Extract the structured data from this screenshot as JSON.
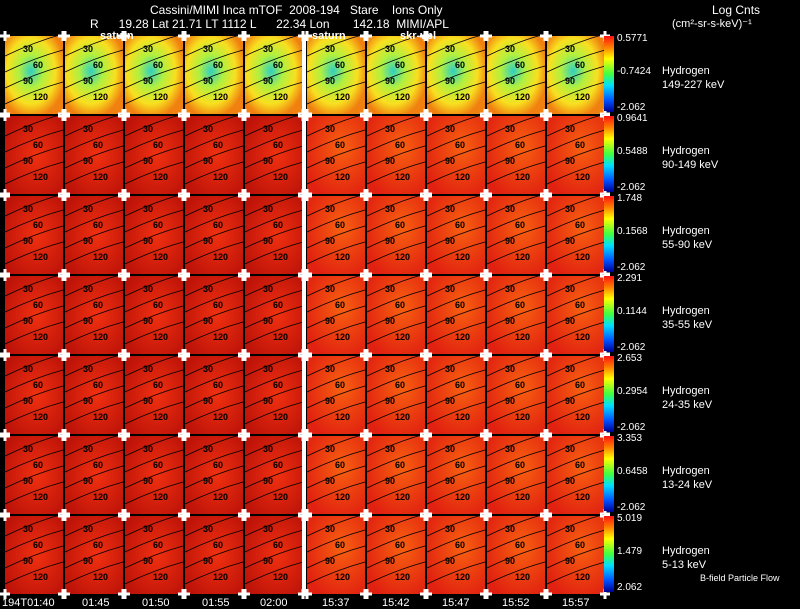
{
  "header": {
    "title": "Cassini/MIMI Inca mTOF  2008-194   Stare    Ions Only",
    "subtitle": "R      19.28 Lat 21.71 LT 1112 L      22.34 Lon       142.18  MIMI/APL",
    "units_title": "Log Cnts",
    "units_sub": "(cm²-sr-s-keV)⁻¹"
  },
  "pane_labels": [
    "saturn",
    "saturn",
    "skr-vpl"
  ],
  "rows": [
    {
      "species": "Hydrogen",
      "range": "149-227 keV",
      "max": "0.5771",
      "mid": "-0.7424",
      "min": "-2.062"
    },
    {
      "species": "Hydrogen",
      "range": "90-149 keV",
      "max": "0.9641",
      "mid": "0.5488",
      "min": "-2.062"
    },
    {
      "species": "Hydrogen",
      "range": "55-90 keV",
      "max": "1.748",
      "mid": "0.1568",
      "min": "-2.062"
    },
    {
      "species": "Hydrogen",
      "range": "35-55 keV",
      "max": "2.291",
      "mid": "0.1144",
      "min": "-2.062"
    },
    {
      "species": "Hydrogen",
      "range": "24-35 keV",
      "max": "2.653",
      "mid": "0.2954",
      "min": "-2.062"
    },
    {
      "species": "Hydrogen",
      "range": "13-24 keV",
      "max": "3.353",
      "mid": "0.6458",
      "min": "-2.062"
    },
    {
      "species": "Hydrogen",
      "range": "5-13 keV",
      "max": "5.019",
      "mid": "1.479",
      "min": "2.062"
    }
  ],
  "time_labels": [
    "194T01:40",
    "01:45",
    "01:50",
    "01:55",
    "02:00",
    "15:37",
    "15:42",
    "15:47",
    "15:52",
    "15:57"
  ],
  "contour_labels": [
    "30",
    "60",
    "90",
    "120"
  ],
  "footer": "B-field Particle Flow",
  "colors": {
    "background": "#000000",
    "grid": "#ffffff",
    "contour": "#000000"
  }
}
